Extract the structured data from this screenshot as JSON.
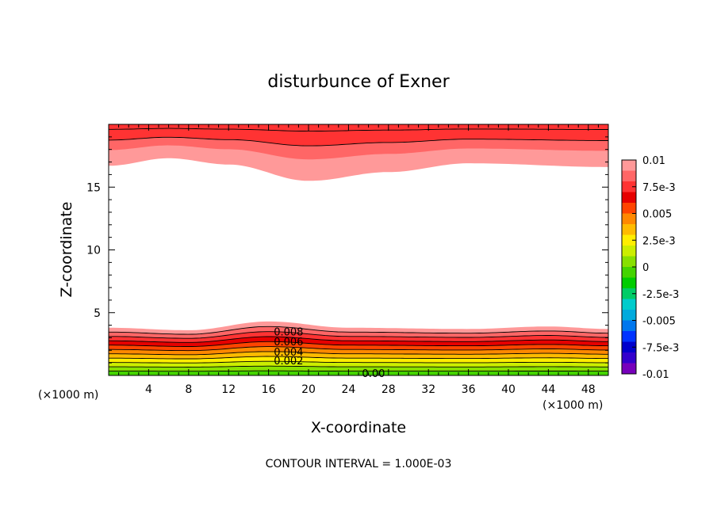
{
  "chart_data": {
    "type": "contour",
    "title": "disturbunce of Exner",
    "xlabel": "X-coordinate",
    "ylabel": "Z-coordinate",
    "x_unit_label": "(×1000 m)",
    "xlim": [
      0,
      50
    ],
    "ylim": [
      0,
      20
    ],
    "x_ticks": [
      4,
      8,
      12,
      16,
      20,
      24,
      28,
      32,
      36,
      40,
      44,
      48
    ],
    "y_ticks": [
      5,
      10,
      15
    ],
    "contour_interval_text": "CONTOUR INTERVAL = 1.000E-03",
    "contour_labels": [
      {
        "text": "0.008",
        "x": 18,
        "z": 3.5
      },
      {
        "text": "0.006",
        "x": 18,
        "z": 2.7
      },
      {
        "text": "0.004",
        "x": 18,
        "z": 1.9
      },
      {
        "text": "0.002",
        "x": 18,
        "z": 1.2
      },
      {
        "text": "0.00",
        "x": 26.5,
        "z": 0.2
      }
    ],
    "colorbar": {
      "tick_labels": [
        "0.01",
        "7.5e-3",
        "0.005",
        "2.5e-3",
        "0",
        "-2.5e-3",
        "-0.005",
        "-7.5e-3",
        "-0.01"
      ],
      "tick_values": [
        0.01,
        0.0075,
        0.005,
        0.0025,
        0,
        -0.0025,
        -0.005,
        -0.0075,
        -0.01
      ],
      "colors_top_to_bottom": [
        "#ff9999",
        "#ff6666",
        "#ff3333",
        "#e60000",
        "#ff4400",
        "#ff8800",
        "#ffbb00",
        "#ffee00",
        "#ccee00",
        "#88e000",
        "#44d400",
        "#00cc00",
        "#00cc66",
        "#00cccc",
        "#00aadd",
        "#0077ee",
        "#0033ff",
        "#0000cc",
        "#3300cc",
        "#7700bb"
      ]
    },
    "bottom_layer": {
      "description_levels": [
        0,
        0.001,
        0.002,
        0.003,
        0.004,
        0.005,
        0.006,
        0.007,
        0.008,
        0.009,
        0.01
      ],
      "band_colors": [
        "#44d400",
        "#88e000",
        "#ccee00",
        "#ffee00",
        "#ffbb00",
        "#ff8800",
        "#ff4400",
        "#e60000",
        "#ff3333",
        "#ff6666",
        "#ff9999"
      ],
      "top_boundary_z": [
        {
          "x": 0,
          "z": 3.8
        },
        {
          "x": 8,
          "z": 3.6
        },
        {
          "x": 16,
          "z": 4.3
        },
        {
          "x": 24,
          "z": 3.8
        },
        {
          "x": 36,
          "z": 3.7
        },
        {
          "x": 44,
          "z": 3.9
        },
        {
          "x": 50,
          "z": 3.7
        }
      ]
    },
    "top_layer": {
      "band_colors": [
        "#ff9999",
        "#ff6666",
        "#ff3333"
      ],
      "lower_boundary_z": [
        {
          "x": 0,
          "z": 16.7
        },
        {
          "x": 6,
          "z": 17.3
        },
        {
          "x": 12,
          "z": 16.8
        },
        {
          "x": 20,
          "z": 15.5
        },
        {
          "x": 28,
          "z": 16.2
        },
        {
          "x": 36,
          "z": 16.9
        },
        {
          "x": 50,
          "z": 16.6
        }
      ]
    }
  }
}
